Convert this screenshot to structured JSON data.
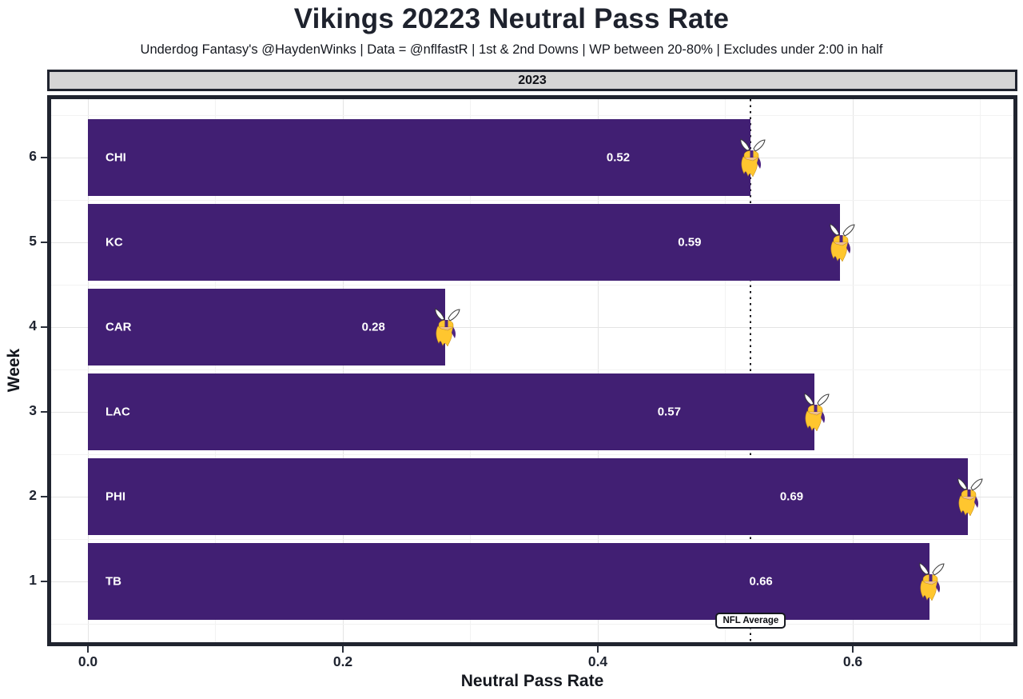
{
  "page": {
    "title": "Vikings 20223 Neutral Pass Rate",
    "subtitle": "Underdog Fantasy's @HaydenWinks | Data = @nflfastR | 1st & 2nd Downs | WP between 20-80% | Excludes under 2:00 in half"
  },
  "chart_data": {
    "type": "bar",
    "orientation": "horizontal",
    "title": "Vikings 20223 Neutral Pass Rate",
    "facet_label": "2023",
    "xlabel": "Neutral Pass Rate",
    "ylabel": "Week",
    "xlim": [
      -0.029,
      0.726
    ],
    "x_ticks": [
      {
        "value": 0.0,
        "label": "0.0"
      },
      {
        "value": 0.2,
        "label": "0.2"
      },
      {
        "value": 0.4,
        "label": "0.4"
      },
      {
        "value": 0.6,
        "label": "0.6"
      }
    ],
    "grid": true,
    "legend": "none",
    "bars": [
      {
        "week": 6,
        "opponent": "CHI",
        "value": 0.52
      },
      {
        "week": 5,
        "opponent": "KC",
        "value": 0.59
      },
      {
        "week": 4,
        "opponent": "CAR",
        "value": 0.28
      },
      {
        "week": 3,
        "opponent": "LAC",
        "value": 0.57
      },
      {
        "week": 2,
        "opponent": "PHI",
        "value": 0.69
      },
      {
        "week": 1,
        "opponent": "TB",
        "value": 0.66
      }
    ],
    "reference_line": {
      "value": 0.52,
      "label": "NFL Average",
      "style": "dotted"
    },
    "marker_icon": "vikings-logo",
    "colors": {
      "bar": "#411F73",
      "bar_label": "#FFFFFF",
      "axis_text": "#1F2430",
      "title_text": "#1E222D",
      "panel_border": "#20242F",
      "strip_bg": "#D5D5D5",
      "grid_major": "#E4E4E4",
      "grid_minor": "#F2F2F2",
      "ref_line": "#15151A",
      "logo_gold": "#FFC62F",
      "logo_purple": "#4F2683",
      "logo_skin": "#EDBE8C",
      "logo_horn": "#FDFDFD"
    }
  }
}
